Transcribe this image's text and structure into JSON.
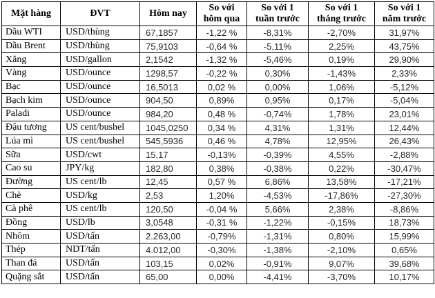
{
  "table": {
    "headers": [
      "Mặt hàng",
      "ĐVT",
      "Hôm nay",
      "So với\nhôm qua",
      "So với 1\ntuần trước",
      "So với 1\ntháng trước",
      "So với 1\nnăm trước"
    ],
    "rows": [
      [
        "Dầu WTI",
        "USD/thùng",
        "67,1857",
        "-1,22 %",
        "-8,31%",
        "-2,70%",
        "31,97%"
      ],
      [
        "Dầu Brent",
        "USD/thùng",
        "75,9103",
        "-0,64 %",
        "-5,11%",
        "2,25%",
        "43,75%"
      ],
      [
        "Xăng",
        "USD/gallon",
        "2,1542",
        "-1,32 %",
        "-5,46%",
        "0,19%",
        "29,90%"
      ],
      [
        "Vàng",
        "USD/ounce",
        "1298,57",
        "-0,22 %",
        "0,30%",
        "-1,43%",
        "2,33%"
      ],
      [
        "Bạc",
        "USD/ounce",
        "16,5013",
        "0,02 %",
        "0,00%",
        "1,06%",
        "-5,12%"
      ],
      [
        "Bạch kim",
        "USD/ounce",
        "904,50",
        "0,89%",
        "0,95%",
        "0,17%",
        "-5,04%"
      ],
      [
        "Paladi",
        "USD/ounce",
        "984,20",
        "0,48 %",
        "-0,74%",
        "1,78%",
        "23,01%"
      ],
      [
        "Đậu tương",
        "US cent/bushel",
        "1045,0250",
        "0,34 %",
        "4,31%",
        "1,31%",
        "12,44%"
      ],
      [
        "Lúa mì",
        "US cent/bushel",
        "545,5936",
        "0,46 %",
        "4,78%",
        "12,95%",
        "26,43%"
      ],
      [
        "Sữa",
        "USD/cwt",
        "15,17",
        "-0,13%",
        "-0,39%",
        "4,55%",
        "-2,88%"
      ],
      [
        "Cao su",
        "JPY/kg",
        "182,80",
        "0,38%",
        "-0,38%",
        "0,22%",
        "-30,47%"
      ],
      [
        "Đường",
        "US cent/lb",
        "12,45",
        "0,57 %",
        "6,86%",
        "13,58%",
        "-17,21%"
      ],
      [
        "Chè",
        "USD/kg",
        "2,53",
        "1,20%",
        "-4,53%",
        "-17,86%",
        "-27,30%"
      ],
      [
        "Cà phê",
        "US cent/lb",
        "120,50",
        "-0,04 %",
        "5,66%",
        "2,38%",
        "-8,86%"
      ],
      [
        "Đồng",
        "USD/lb",
        "3,0548",
        "-0,31 %",
        "-1,22%",
        "-0,15%",
        "18,73%"
      ],
      [
        "Nhôm",
        "USD/tấn",
        "2.263,00",
        "-0,79%",
        "-1,31%",
        "0,80%",
        "15,99%"
      ],
      [
        "Thép",
        "NDT/tấn",
        "4.012,00",
        "-0,30%",
        "-1,38%",
        "-2,10%",
        "0,65%"
      ],
      [
        "Than đá",
        "USD/tấn",
        "103,15",
        "0,02%",
        "-0,91%",
        "9,07%",
        "39,68%"
      ],
      [
        "Quặng sắt",
        "USD/tấn",
        "65,00",
        "0,00%",
        "-4,41%",
        "-3,70%",
        "10,17%"
      ]
    ]
  }
}
